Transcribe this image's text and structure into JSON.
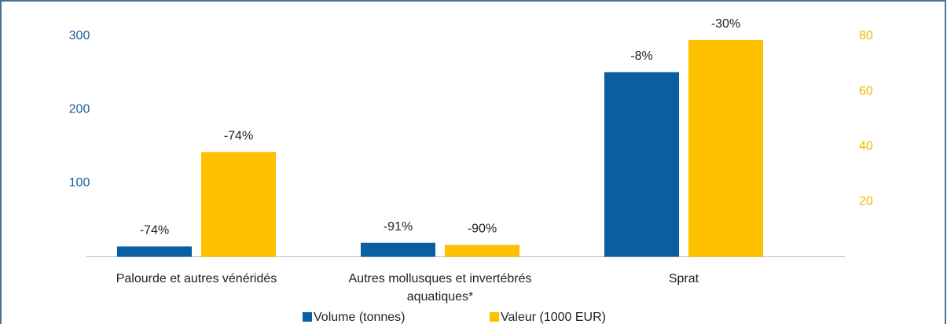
{
  "chart_data": {
    "type": "bar",
    "categories": [
      "Palourde et autres vénéridés",
      "Autres mollusques et invertébrés aquatiques*",
      "Sprat"
    ],
    "series": [
      {
        "name": "Volume (tonnes)",
        "color": "#0a5fa2",
        "values": [
          14,
          19,
          251
        ],
        "labels": [
          "-74%",
          "-91%",
          "-8%"
        ]
      },
      {
        "name": "Valeur (1000 EUR)",
        "color": "#ffc000",
        "axis": "y2",
        "values": [
          38,
          4.3,
          78.6
        ],
        "labels": [
          "-74%",
          "-90%",
          "-30%"
        ]
      }
    ],
    "ylim": [
      0,
      300
    ],
    "yticks": [
      100,
      200,
      300
    ],
    "ycolor": "#1a5e9a",
    "y2lim": [
      0,
      80
    ],
    "y2ticks": [
      20,
      40,
      60,
      80
    ],
    "y2color": "#f0b800",
    "grid": true,
    "legend": "bottom"
  }
}
